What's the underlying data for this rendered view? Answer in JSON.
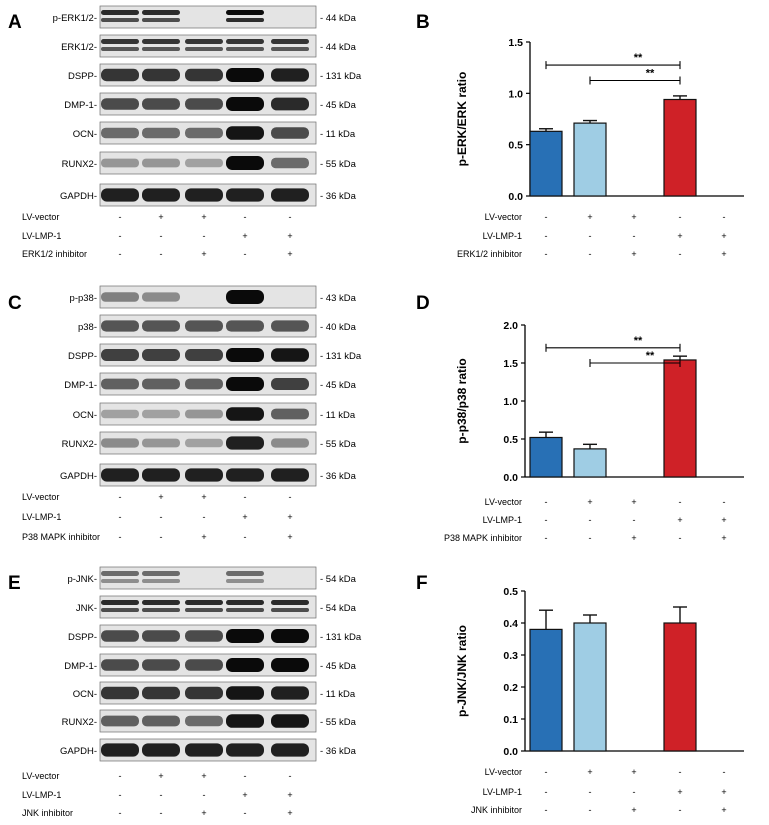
{
  "treatments": {
    "lv_vector": [
      "-",
      "+",
      "+",
      "-",
      "-"
    ],
    "lv_lmp1": [
      "-",
      "-",
      "-",
      "+",
      "+"
    ],
    "inhibitor": [
      "-",
      "-",
      "+",
      "-",
      "+"
    ]
  },
  "panels": [
    {
      "letter": "A",
      "blot": {
        "rows": [
          {
            "label": "p-ERK1/2-",
            "kda": "- 44 kDa",
            "intensity": [
              0.85,
              0.85,
              0.0,
              1.0,
              0.0
            ],
            "double": true
          },
          {
            "label": "ERK1/2-",
            "kda": "- 44 kDa",
            "intensity": [
              0.8,
              0.8,
              0.8,
              0.8,
              0.8
            ],
            "double": true
          },
          {
            "label": "DSPP-",
            "kda": "- 131 kDa",
            "intensity": [
              0.8,
              0.8,
              0.8,
              1.0,
              0.9
            ],
            "double": false
          },
          {
            "label": "DMP-1-",
            "kda": "- 45 kDa",
            "intensity": [
              0.7,
              0.7,
              0.7,
              1.0,
              0.85
            ],
            "double": false
          },
          {
            "label": "OCN-",
            "kda": "- 11 kDa",
            "intensity": [
              0.55,
              0.55,
              0.55,
              0.95,
              0.7
            ],
            "double": false
          },
          {
            "label": "RUNX2-",
            "kda": "- 55 kDa",
            "intensity": [
              0.35,
              0.35,
              0.3,
              1.0,
              0.55
            ],
            "double": false
          },
          {
            "label": "GAPDH-",
            "kda": "- 36 kDa",
            "intensity": [
              0.9,
              0.9,
              0.9,
              0.9,
              0.9
            ],
            "double": false
          }
        ],
        "treatment_labels": [
          "LV-vector",
          "LV-LMP-1",
          "ERK1/2 inhibitor"
        ]
      }
    },
    {
      "letter": "C",
      "blot": {
        "rows": [
          {
            "label": "p-p38-",
            "kda": "- 43 kDa",
            "intensity": [
              0.45,
              0.4,
              0.0,
              1.0,
              0.0
            ],
            "double": false
          },
          {
            "label": "p38-",
            "kda": "- 40 kDa",
            "intensity": [
              0.65,
              0.65,
              0.65,
              0.65,
              0.65
            ],
            "double": false
          },
          {
            "label": "DSPP-",
            "kda": "- 131 kDa",
            "intensity": [
              0.75,
              0.75,
              0.75,
              1.0,
              0.95
            ],
            "double": false
          },
          {
            "label": "DMP-1-",
            "kda": "- 45 kDa",
            "intensity": [
              0.6,
              0.6,
              0.6,
              1.0,
              0.75
            ],
            "double": false
          },
          {
            "label": "OCN-",
            "kda": "- 11 kDa",
            "intensity": [
              0.3,
              0.3,
              0.35,
              0.95,
              0.6
            ],
            "double": false
          },
          {
            "label": "RUNX2-",
            "kda": "- 55 kDa",
            "intensity": [
              0.4,
              0.35,
              0.3,
              0.9,
              0.4
            ],
            "double": false
          },
          {
            "label": "GAPDH-",
            "kda": "- 36 kDa",
            "intensity": [
              0.9,
              0.9,
              0.9,
              0.9,
              0.9
            ],
            "double": false
          }
        ],
        "treatment_labels": [
          "LV-vector",
          "LV-LMP-1",
          "P38 MAPK inhibitor"
        ]
      }
    },
    {
      "letter": "E",
      "blot": {
        "rows": [
          {
            "label": "p-JNK-",
            "kda": "- 54 kDa",
            "intensity": [
              0.55,
              0.55,
              0.0,
              0.55,
              0.0
            ],
            "double": true
          },
          {
            "label": "JNK-",
            "kda": "- 54 kDa",
            "intensity": [
              0.85,
              0.85,
              0.85,
              0.85,
              0.85
            ],
            "double": true
          },
          {
            "label": "DSPP-",
            "kda": "- 131 kDa",
            "intensity": [
              0.7,
              0.7,
              0.7,
              1.0,
              1.0
            ],
            "double": false
          },
          {
            "label": "DMP-1-",
            "kda": "- 45 kDa",
            "intensity": [
              0.7,
              0.7,
              0.7,
              1.0,
              1.0
            ],
            "double": false
          },
          {
            "label": "OCN-",
            "kda": "- 11 kDa",
            "intensity": [
              0.8,
              0.8,
              0.8,
              0.95,
              0.9
            ],
            "double": false
          },
          {
            "label": "RUNX2-",
            "kda": "- 55 kDa",
            "intensity": [
              0.6,
              0.6,
              0.55,
              0.95,
              0.95
            ],
            "double": false
          },
          {
            "label": "GAPDH-",
            "kda": "- 36 kDa",
            "intensity": [
              0.9,
              0.9,
              0.9,
              0.9,
              0.9
            ],
            "double": false
          }
        ],
        "treatment_labels": [
          "LV-vector",
          "LV-LMP-1",
          "JNK inhibitor"
        ]
      }
    }
  ],
  "colors": {
    "bar1": "#2870b5",
    "bar2": "#9fcde4",
    "bar4": "#cf2127"
  },
  "chart_data": [
    {
      "letter": "B",
      "type": "bar",
      "ylabel": "p-ERK/ERK ratio",
      "ylim": [
        0,
        1.5
      ],
      "ticks": [
        "0.0",
        "0.5",
        "1.0",
        "1.5"
      ],
      "values": [
        0.63,
        0.71,
        null,
        0.94,
        null
      ],
      "errors": [
        0.025,
        0.025,
        null,
        0.035,
        null
      ],
      "significance": [
        {
          "from": 1,
          "to": 4,
          "label": "**"
        },
        {
          "from": 2,
          "to": 4,
          "label": "**"
        }
      ],
      "treatment_labels": [
        "LV-vector",
        "LV-LMP-1",
        "ERK1/2 inhibitor"
      ]
    },
    {
      "letter": "D",
      "type": "bar",
      "ylabel": "p-p38/p38 ratio",
      "ylim": [
        0,
        2.0
      ],
      "ticks": [
        "0.0",
        "0.5",
        "1.0",
        "1.5",
        "2.0"
      ],
      "values": [
        0.52,
        0.37,
        null,
        1.54,
        null
      ],
      "errors": [
        0.07,
        0.06,
        null,
        0.05,
        null
      ],
      "significance": [
        {
          "from": 1,
          "to": 4,
          "label": "**"
        },
        {
          "from": 2,
          "to": 4,
          "label": "**"
        }
      ],
      "treatment_labels": [
        "LV-vector",
        "LV-LMP-1",
        "P38 MAPK inhibitor"
      ]
    },
    {
      "letter": "F",
      "type": "bar",
      "ylabel": "p-JNK/JNK ratio",
      "ylim": [
        0,
        0.5
      ],
      "ticks": [
        "0.0",
        "0.1",
        "0.2",
        "0.3",
        "0.4",
        "0.5"
      ],
      "values": [
        0.38,
        0.4,
        null,
        0.4,
        null
      ],
      "errors": [
        0.06,
        0.025,
        null,
        0.05,
        null
      ],
      "significance": [],
      "treatment_labels": [
        "LV-vector",
        "LV-LMP-1",
        "JNK inhibitor"
      ]
    }
  ]
}
